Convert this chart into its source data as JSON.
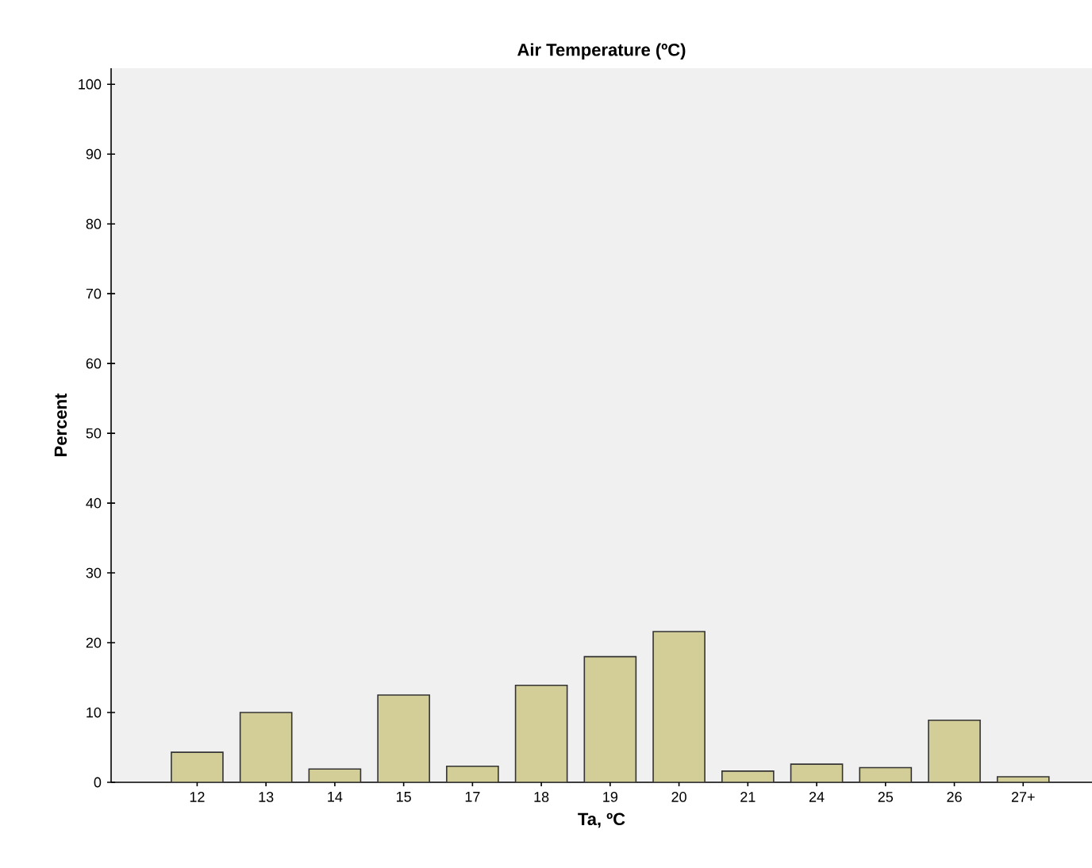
{
  "chart_data": {
    "type": "bar",
    "title": "Air Temperature (ºC)",
    "xlabel": "Ta, ºC",
    "ylabel": "Percent",
    "categories": [
      "12",
      "13",
      "14",
      "15",
      "17",
      "18",
      "19",
      "20",
      "21",
      "24",
      "25",
      "26",
      "27+"
    ],
    "values": [
      4.3,
      10.0,
      1.9,
      12.5,
      2.3,
      13.9,
      18.0,
      21.6,
      1.6,
      2.6,
      2.1,
      8.9,
      0.8
    ],
    "color": "#d3ce97",
    "ylim": [
      0,
      102.3
    ],
    "yticks": [
      0,
      10,
      20,
      30,
      40,
      50,
      60,
      70,
      80,
      90,
      100
    ],
    "grid": false
  }
}
